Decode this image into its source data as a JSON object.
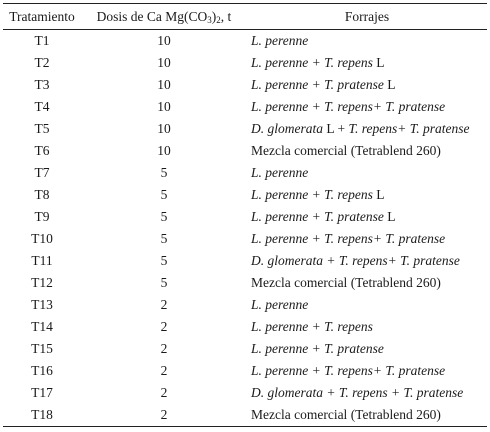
{
  "headers": {
    "tratamiento": "Tratamiento",
    "dosis_prefix": "Dosis de Ca Mg(CO",
    "dosis_sub": "3",
    "dosis_mid": ")",
    "dosis_sub2": "2",
    "dosis_suffix": ", t",
    "forrajes": "Forrajes"
  },
  "rows": [
    {
      "t": "T1",
      "d": "10",
      "f": [
        {
          "text": "L. perenne",
          "italic": true
        }
      ]
    },
    {
      "t": "T2",
      "d": "10",
      "f": [
        {
          "text": "L. perenne + T. repens",
          "italic": true
        },
        {
          "text": " L",
          "italic": false
        }
      ]
    },
    {
      "t": "T3",
      "d": "10",
      "f": [
        {
          "text": "L. perenne + T. pratense",
          "italic": true
        },
        {
          "text": " L",
          "italic": false
        }
      ]
    },
    {
      "t": "T4",
      "d": "10",
      "f": [
        {
          "text": "L. perenne + T. repens+ T. pratense",
          "italic": true
        }
      ]
    },
    {
      "t": "T5",
      "d": "10",
      "f": [
        {
          "text": "D. glomerata",
          "italic": true
        },
        {
          "text": " L + ",
          "italic": false
        },
        {
          "text": "T. repens+ T. pratense",
          "italic": true
        }
      ]
    },
    {
      "t": "T6",
      "d": "10",
      "f": [
        {
          "text": "Mezcla comercial (Tetrablend 260)",
          "italic": false
        }
      ]
    },
    {
      "t": "T7",
      "d": "5",
      "f": [
        {
          "text": "L. perenne",
          "italic": true
        }
      ]
    },
    {
      "t": "T8",
      "d": "5",
      "f": [
        {
          "text": "L. perenne + T. repens",
          "italic": true
        },
        {
          "text": " L",
          "italic": false
        }
      ]
    },
    {
      "t": "T9",
      "d": "5",
      "f": [
        {
          "text": "L. perenne + T. pratense",
          "italic": true
        },
        {
          "text": " L",
          "italic": false
        }
      ]
    },
    {
      "t": "T10",
      "d": "5",
      "f": [
        {
          "text": "L. perenne + T. repens+ T. pratense",
          "italic": true
        }
      ]
    },
    {
      "t": "T11",
      "d": "5",
      "f": [
        {
          "text": "D. glomerata + T. repens+ T. pratense",
          "italic": true
        }
      ]
    },
    {
      "t": "T12",
      "d": "5",
      "f": [
        {
          "text": "Mezcla comercial (Tetrablend 260)",
          "italic": false
        }
      ]
    },
    {
      "t": "T13",
      "d": "2",
      "f": [
        {
          "text": "L. perenne",
          "italic": true
        }
      ]
    },
    {
      "t": "T14",
      "d": "2",
      "f": [
        {
          "text": "L. perenne + T. repens",
          "italic": true
        }
      ]
    },
    {
      "t": "T15",
      "d": "2",
      "f": [
        {
          "text": "L. perenne + T. pratense",
          "italic": true
        }
      ]
    },
    {
      "t": "T16",
      "d": "2",
      "f": [
        {
          "text": "L. perenne + T. repens+ T. pratense",
          "italic": true
        }
      ]
    },
    {
      "t": "T17",
      "d": "2",
      "f": [
        {
          "text": "D. glomerata + T. repens + T. pratense",
          "italic": true
        }
      ]
    },
    {
      "t": "T18",
      "d": "2",
      "f": [
        {
          "text": "Mezcla comercial (Tetrablend 260)",
          "italic": false
        }
      ]
    }
  ]
}
